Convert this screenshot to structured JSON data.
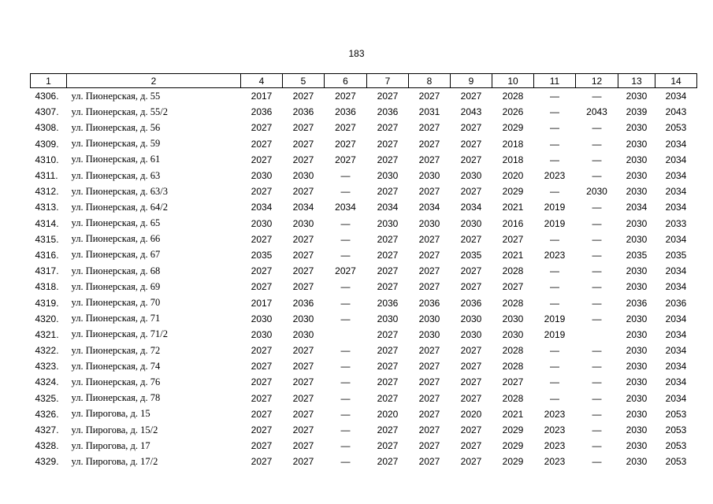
{
  "page_number": "183",
  "table": {
    "header": [
      "1",
      "2",
      "4",
      "5",
      "6",
      "7",
      "8",
      "9",
      "10",
      "11",
      "12",
      "13",
      "14"
    ],
    "rows": [
      [
        "4306.",
        "ул. Пионерская, д. 55",
        2017,
        2027,
        2027,
        2027,
        2027,
        2027,
        2028,
        "—",
        "—",
        2030,
        2034
      ],
      [
        "4307.",
        "ул. Пионерская, д. 55/2",
        2036,
        2036,
        2036,
        2036,
        2031,
        2043,
        2026,
        "—",
        2043,
        2039,
        2043
      ],
      [
        "4308.",
        "ул. Пионерская, д. 56",
        2027,
        2027,
        2027,
        2027,
        2027,
        2027,
        2029,
        "—",
        "—",
        2030,
        2053
      ],
      [
        "4309.",
        "ул. Пионерская, д. 59",
        2027,
        2027,
        2027,
        2027,
        2027,
        2027,
        2018,
        "—",
        "—",
        2030,
        2034
      ],
      [
        "4310.",
        "ул. Пионерская, д. 61",
        2027,
        2027,
        2027,
        2027,
        2027,
        2027,
        2018,
        "—",
        "—",
        2030,
        2034
      ],
      [
        "4311.",
        "ул. Пионерская, д. 63",
        2030,
        2030,
        "—",
        2030,
        2030,
        2030,
        2020,
        2023,
        "—",
        2030,
        2034
      ],
      [
        "4312.",
        "ул. Пионерская, д. 63/3",
        2027,
        2027,
        "—",
        2027,
        2027,
        2027,
        2029,
        "—",
        2030,
        2030,
        2034
      ],
      [
        "4313.",
        "ул. Пионерская, д. 64/2",
        2034,
        2034,
        2034,
        2034,
        2034,
        2034,
        2021,
        2019,
        "—",
        2034,
        2034
      ],
      [
        "4314.",
        "ул. Пионерская, д. 65",
        2030,
        2030,
        "—",
        2030,
        2030,
        2030,
        2016,
        2019,
        "—",
        2030,
        2033
      ],
      [
        "4315.",
        "ул. Пионерская, д. 66",
        2027,
        2027,
        "—",
        2027,
        2027,
        2027,
        2027,
        "—",
        "—",
        2030,
        2034
      ],
      [
        "4316.",
        "ул. Пионерская, д. 67",
        2035,
        2027,
        "—",
        2027,
        2027,
        2035,
        2021,
        2023,
        "—",
        2035,
        2035
      ],
      [
        "4317.",
        "ул. Пионерская, д. 68",
        2027,
        2027,
        2027,
        2027,
        2027,
        2027,
        2028,
        "—",
        "—",
        2030,
        2034
      ],
      [
        "4318.",
        "ул. Пионерская, д. 69",
        2027,
        2027,
        "—",
        2027,
        2027,
        2027,
        2027,
        "—",
        "—",
        2030,
        2034
      ],
      [
        "4319.",
        "ул. Пионерская, д. 70",
        2017,
        2036,
        "—",
        2036,
        2036,
        2036,
        2028,
        "—",
        "—",
        2036,
        2036
      ],
      [
        "4320.",
        "ул. Пионерская, д. 71",
        2030,
        2030,
        "—",
        2030,
        2030,
        2030,
        2030,
        2019,
        "—",
        2030,
        2034
      ],
      [
        "4321.",
        "ул. Пионерская, д. 71/2",
        2030,
        2030,
        null,
        2027,
        2030,
        2030,
        2030,
        2019,
        null,
        2030,
        2034
      ],
      [
        "4322.",
        "ул. Пионерская, д. 72",
        2027,
        2027,
        "—",
        2027,
        2027,
        2027,
        2028,
        "—",
        "—",
        2030,
        2034
      ],
      [
        "4323.",
        "ул. Пионерская, д. 74",
        2027,
        2027,
        "—",
        2027,
        2027,
        2027,
        2028,
        "—",
        "—",
        2030,
        2034
      ],
      [
        "4324.",
        "ул. Пионерская, д. 76",
        2027,
        2027,
        "—",
        2027,
        2027,
        2027,
        2027,
        "—",
        "—",
        2030,
        2034
      ],
      [
        "4325.",
        "ул. Пионерская, д. 78",
        2027,
        2027,
        "—",
        2027,
        2027,
        2027,
        2028,
        "—",
        "—",
        2030,
        2034
      ],
      [
        "4326.",
        "ул. Пирогова, д. 15",
        2027,
        2027,
        "—",
        2020,
        2027,
        2020,
        2021,
        2023,
        "—",
        2030,
        2053
      ],
      [
        "4327.",
        "ул. Пирогова, д. 15/2",
        2027,
        2027,
        "—",
        2027,
        2027,
        2027,
        2029,
        2023,
        "—",
        2030,
        2053
      ],
      [
        "4328.",
        "ул. Пирогова, д. 17",
        2027,
        2027,
        "—",
        2027,
        2027,
        2027,
        2029,
        2023,
        "—",
        2030,
        2053
      ],
      [
        "4329.",
        "ул. Пирогова, д. 17/2",
        2027,
        2027,
        "—",
        2027,
        2027,
        2027,
        2029,
        2023,
        "—",
        2030,
        2053
      ]
    ]
  }
}
